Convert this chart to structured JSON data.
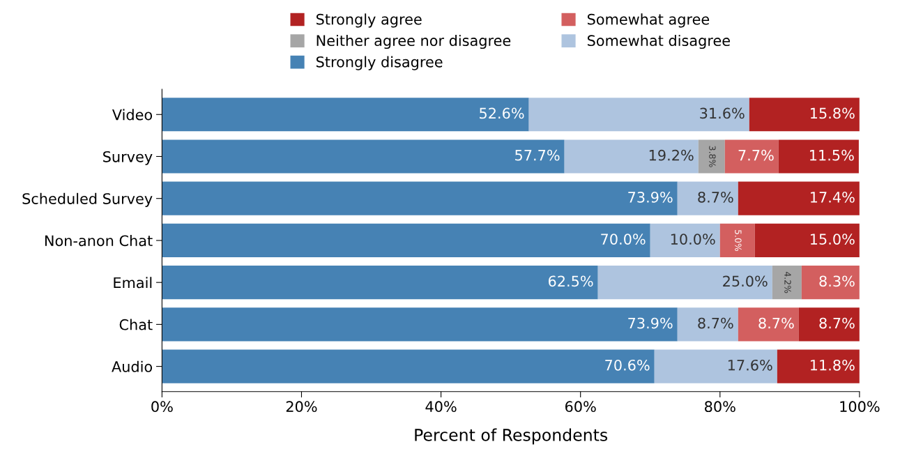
{
  "chart_data": {
    "type": "bar",
    "orientation": "horizontal",
    "stacked": true,
    "xlabel": "Percent of Respondents",
    "categories": [
      "Video",
      "Survey",
      "Scheduled Survey",
      "Non-anon Chat",
      "Email",
      "Chat",
      "Audio"
    ],
    "series": [
      {
        "name": "Strongly disagree",
        "color": "#4682b4",
        "values": [
          52.6,
          57.7,
          73.9,
          70.0,
          62.5,
          73.9,
          70.6
        ],
        "value_labels": [
          "52.6%",
          "57.7%",
          "73.9%",
          "70.0%",
          "62.5%",
          "73.9%",
          "70.6%"
        ]
      },
      {
        "name": "Somewhat disagree",
        "color": "#aec4df",
        "values": [
          31.6,
          19.2,
          8.7,
          10.0,
          25.0,
          8.7,
          17.6
        ],
        "value_labels": [
          "31.6%",
          "19.2%",
          "8.7%",
          "10.0%",
          "25.0%",
          "8.7%",
          "17.6%"
        ]
      },
      {
        "name": "Neither agree nor disagree",
        "color": "#a6a6a6",
        "values": [
          null,
          3.8,
          null,
          null,
          4.2,
          null,
          null
        ],
        "value_labels": [
          null,
          "3.8%",
          null,
          null,
          "4.2%",
          null,
          null
        ]
      },
      {
        "name": "Somewhat agree",
        "color": "#d35f5f",
        "values": [
          null,
          7.7,
          null,
          5.0,
          8.3,
          8.7,
          null
        ],
        "value_labels": [
          null,
          "7.7%",
          null,
          "5.0%",
          "8.3%",
          "8.7%",
          null
        ]
      },
      {
        "name": "Strongly agree",
        "color": "#b22222",
        "values": [
          15.8,
          11.5,
          17.4,
          15.0,
          null,
          8.7,
          11.8
        ],
        "value_labels": [
          "15.8%",
          "11.5%",
          "17.4%",
          "15.0%",
          null,
          "8.7%",
          "11.8%"
        ]
      }
    ],
    "xlim": [
      0,
      100
    ],
    "xticks": [
      {
        "value": 0,
        "label": "0%"
      },
      {
        "value": 20,
        "label": "20%"
      },
      {
        "value": 40,
        "label": "40%"
      },
      {
        "value": 60,
        "label": "60%"
      },
      {
        "value": 80,
        "label": "80%"
      },
      {
        "value": 100,
        "label": "100%"
      }
    ],
    "grid": false,
    "legend": "top"
  }
}
